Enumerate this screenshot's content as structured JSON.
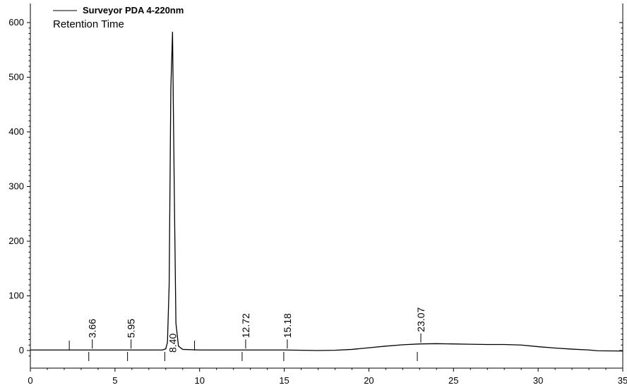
{
  "chart_data": {
    "type": "line",
    "legend": {
      "series_name": "Surveyor PDA 4-220nm",
      "subtitle": "Retention Time",
      "placement": "top-left"
    },
    "xlim": [
      0,
      35
    ],
    "ylim": [
      -20,
      610
    ],
    "x_ticks": [
      0,
      5,
      10,
      15,
      20,
      25,
      30,
      35
    ],
    "y_ticks": [
      0,
      100,
      200,
      300,
      400,
      500,
      600
    ],
    "grid": false,
    "series": [
      {
        "name": "Surveyor PDA 4-220nm",
        "color": "#000000",
        "points": [
          [
            0,
            1
          ],
          [
            3,
            1
          ],
          [
            6,
            1
          ],
          [
            7.8,
            1
          ],
          [
            8.0,
            3
          ],
          [
            8.1,
            15
          ],
          [
            8.2,
            120
          ],
          [
            8.3,
            480
          ],
          [
            8.4,
            583
          ],
          [
            8.5,
            300
          ],
          [
            8.6,
            50
          ],
          [
            8.75,
            8
          ],
          [
            9.0,
            2
          ],
          [
            10,
            1
          ],
          [
            12,
            1
          ],
          [
            15,
            1
          ],
          [
            17,
            0
          ],
          [
            18,
            0.5
          ],
          [
            19,
            2
          ],
          [
            20,
            5
          ],
          [
            21,
            8
          ],
          [
            22,
            10.5
          ],
          [
            23,
            12
          ],
          [
            24,
            12.5
          ],
          [
            25,
            12
          ],
          [
            26,
            11.5
          ],
          [
            27,
            11
          ],
          [
            28,
            11
          ],
          [
            29,
            10
          ],
          [
            30,
            7
          ],
          [
            31,
            4.5
          ],
          [
            32,
            2.5
          ],
          [
            33,
            1
          ],
          [
            33.5,
            -0.5
          ],
          [
            35,
            -1
          ]
        ]
      }
    ],
    "peak_labels": [
      {
        "x": 3.66,
        "label": "3.66"
      },
      {
        "x": 5.95,
        "label": "5.95"
      },
      {
        "x": 8.4,
        "label": "8.40"
      },
      {
        "x": 12.72,
        "label": "12.72"
      },
      {
        "x": 15.18,
        "label": "15.18"
      },
      {
        "x": 23.07,
        "label": "23.07"
      }
    ],
    "baseline_event_marks": [
      3.66,
      5.95,
      8.15,
      12.72,
      15.18,
      23.07
    ],
    "minor_marks_up": [
      2.3,
      9.7
    ]
  }
}
